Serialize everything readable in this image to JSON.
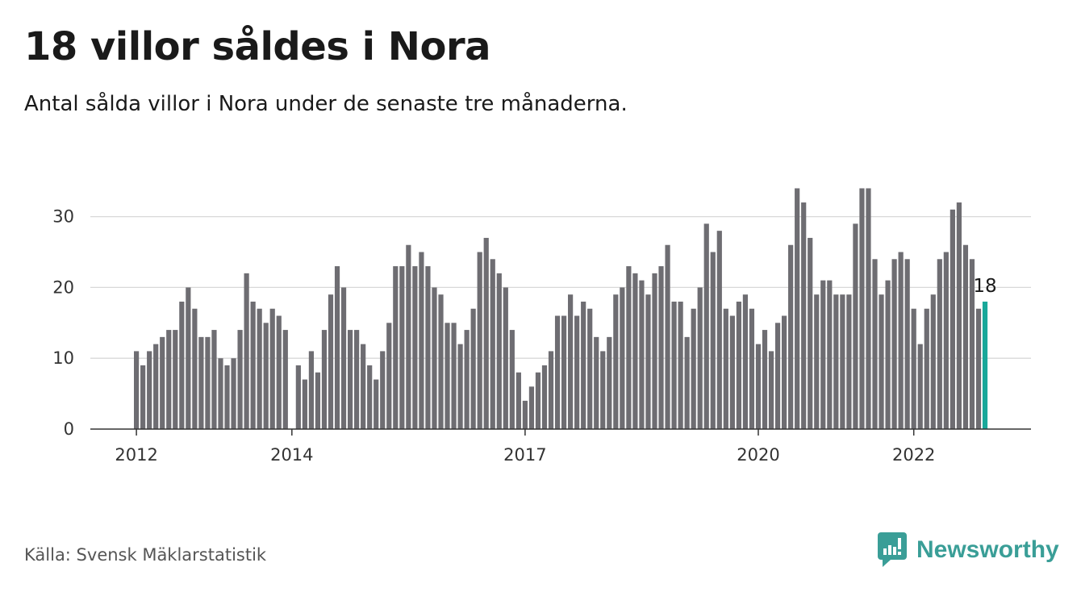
{
  "title": "18 villor såldes i Nora",
  "subtitle": "Antal sålda villor i Nora under de senaste tre månaderna.",
  "source": "Källa: Svensk Mäklarstatistik",
  "brand": {
    "name": "Newsworthy",
    "icon": "newsworthy-logo-icon",
    "color": "#3a9e97"
  },
  "chart_data": {
    "type": "bar",
    "x_start": "2012-01",
    "x_end": "2022-11",
    "values": [
      11,
      9,
      11,
      12,
      13,
      14,
      14,
      18,
      20,
      17,
      13,
      13,
      14,
      10,
      9,
      10,
      14,
      22,
      18,
      17,
      15,
      17,
      16,
      14,
      null,
      9,
      7,
      11,
      8,
      14,
      19,
      23,
      20,
      14,
      14,
      12,
      9,
      7,
      11,
      15,
      23,
      23,
      26,
      23,
      25,
      23,
      20,
      19,
      15,
      15,
      12,
      14,
      17,
      25,
      27,
      24,
      22,
      20,
      14,
      8,
      4,
      6,
      8,
      9,
      11,
      16,
      16,
      19,
      16,
      18,
      17,
      13,
      11,
      13,
      19,
      20,
      23,
      22,
      21,
      19,
      22,
      23,
      26,
      18,
      18,
      13,
      17,
      20,
      29,
      25,
      28,
      17,
      16,
      18,
      19,
      17,
      12,
      14,
      11,
      15,
      16,
      26,
      34,
      32,
      27,
      19,
      21,
      21,
      19,
      19,
      19,
      29,
      34,
      34,
      24,
      19,
      21,
      24,
      25,
      24,
      17,
      12,
      17,
      19,
      24,
      25,
      31,
      32,
      26,
      24,
      17,
      18
    ],
    "x_ticks": [
      "2012",
      "2014",
      "2017",
      "2020",
      "2022"
    ],
    "y_ticks": [
      0,
      10,
      20,
      30
    ],
    "ylim": [
      0,
      36
    ],
    "highlight_label": "18",
    "bar_color": "#6e6d72",
    "highlight_color": "#19a89a",
    "grid": true
  }
}
